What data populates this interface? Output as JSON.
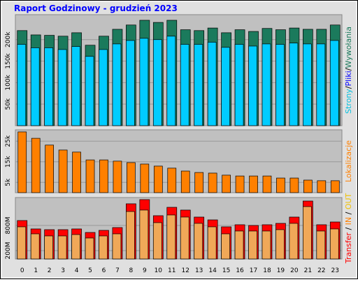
{
  "title": "Raport Godzinowy -  grudzień 2023",
  "chart_data": [
    {
      "type": "bar",
      "ylim": [
        0,
        258000
      ],
      "yticks": [
        {
          "value": 50000,
          "label": "50k"
        },
        {
          "value": 100000,
          "label": "100k"
        },
        {
          "value": 150000,
          "label": "150k"
        },
        {
          "value": 200000,
          "label": "200k"
        }
      ],
      "series": [
        {
          "name": "Wywołania",
          "color": "#1b7a5c",
          "values": [
            221000,
            211000,
            210000,
            208000,
            216000,
            187000,
            208000,
            224000,
            234000,
            245000,
            240000,
            245000,
            223000,
            221000,
            227000,
            216000,
            223000,
            219000,
            226000,
            223000,
            227000,
            224000,
            224000,
            234000
          ]
        },
        {
          "name": "Pliki",
          "color": "#00ccff",
          "values": [
            189000,
            181000,
            181000,
            177000,
            184000,
            161000,
            177000,
            190000,
            198000,
            203000,
            200000,
            208000,
            189000,
            189000,
            194000,
            182000,
            189000,
            185000,
            190000,
            189000,
            192000,
            190000,
            190000,
            198000
          ]
        }
      ],
      "axis_label": [
        {
          "text": "Strony",
          "color": "#00c0e0"
        },
        {
          "text": "/",
          "color": "#000000"
        },
        {
          "text": "Pliki",
          "color": "#0000ff"
        },
        {
          "text": "/",
          "color": "#000000"
        },
        {
          "text": "Wywołania",
          "color": "#1b7a5c"
        }
      ]
    },
    {
      "type": "bar",
      "ylim": [
        0,
        30500
      ],
      "yticks": [
        {
          "value": 5000,
          "label": "5k"
        },
        {
          "value": 15000,
          "label": "15k"
        },
        {
          "value": 25000,
          "label": "25k"
        }
      ],
      "series": [
        {
          "name": "Lokalizacje",
          "color": "#ff8000",
          "values": [
            29500,
            26400,
            23100,
            20700,
            19700,
            15900,
            15900,
            15300,
            14600,
            13900,
            12900,
            11900,
            10500,
            9800,
            9500,
            8500,
            8100,
            8100,
            8100,
            7100,
            7100,
            6100,
            5800,
            5800
          ]
        }
      ],
      "axis_label": [
        {
          "text": "Lokalizacje",
          "color": "#ff8000"
        }
      ]
    },
    {
      "type": "bar",
      "ylim": [
        0,
        1466
      ],
      "yticks": [
        {
          "value": 200,
          "label": "200M"
        },
        {
          "value": 800,
          "label": "800M"
        }
      ],
      "categories": [
        "0",
        "1",
        "2",
        "3",
        "4",
        "5",
        "6",
        "7",
        "8",
        "9",
        "10",
        "11",
        "12",
        "13",
        "14",
        "15",
        "16",
        "17",
        "18",
        "19",
        "20",
        "21",
        "22",
        "23"
      ],
      "series": [
        {
          "name": "Transfer",
          "color": "#ff0000",
          "values": [
            917,
            717,
            700,
            700,
            717,
            633,
            683,
            750,
            1317,
            1417,
            1033,
            1233,
            1167,
            1000,
            933,
            767,
            817,
            800,
            817,
            850,
            1000,
            1383,
            817,
            883
          ]
        },
        {
          "name": "IN",
          "color": "#f0a858",
          "values": [
            767,
            600,
            550,
            550,
            583,
            500,
            550,
            600,
            1133,
            1167,
            867,
            1050,
            1000,
            850,
            767,
            600,
            667,
            667,
            667,
            700,
            850,
            1250,
            667,
            717
          ]
        }
      ],
      "axis_label": [
        {
          "text": "Transfer",
          "color": "#ff0000"
        },
        {
          "text": " / ",
          "color": "#000000"
        },
        {
          "text": "IN",
          "color": "#ff8000"
        },
        {
          "text": " / ",
          "color": "#000000"
        },
        {
          "text": "OUT",
          "color": "#f0c000"
        }
      ]
    }
  ]
}
